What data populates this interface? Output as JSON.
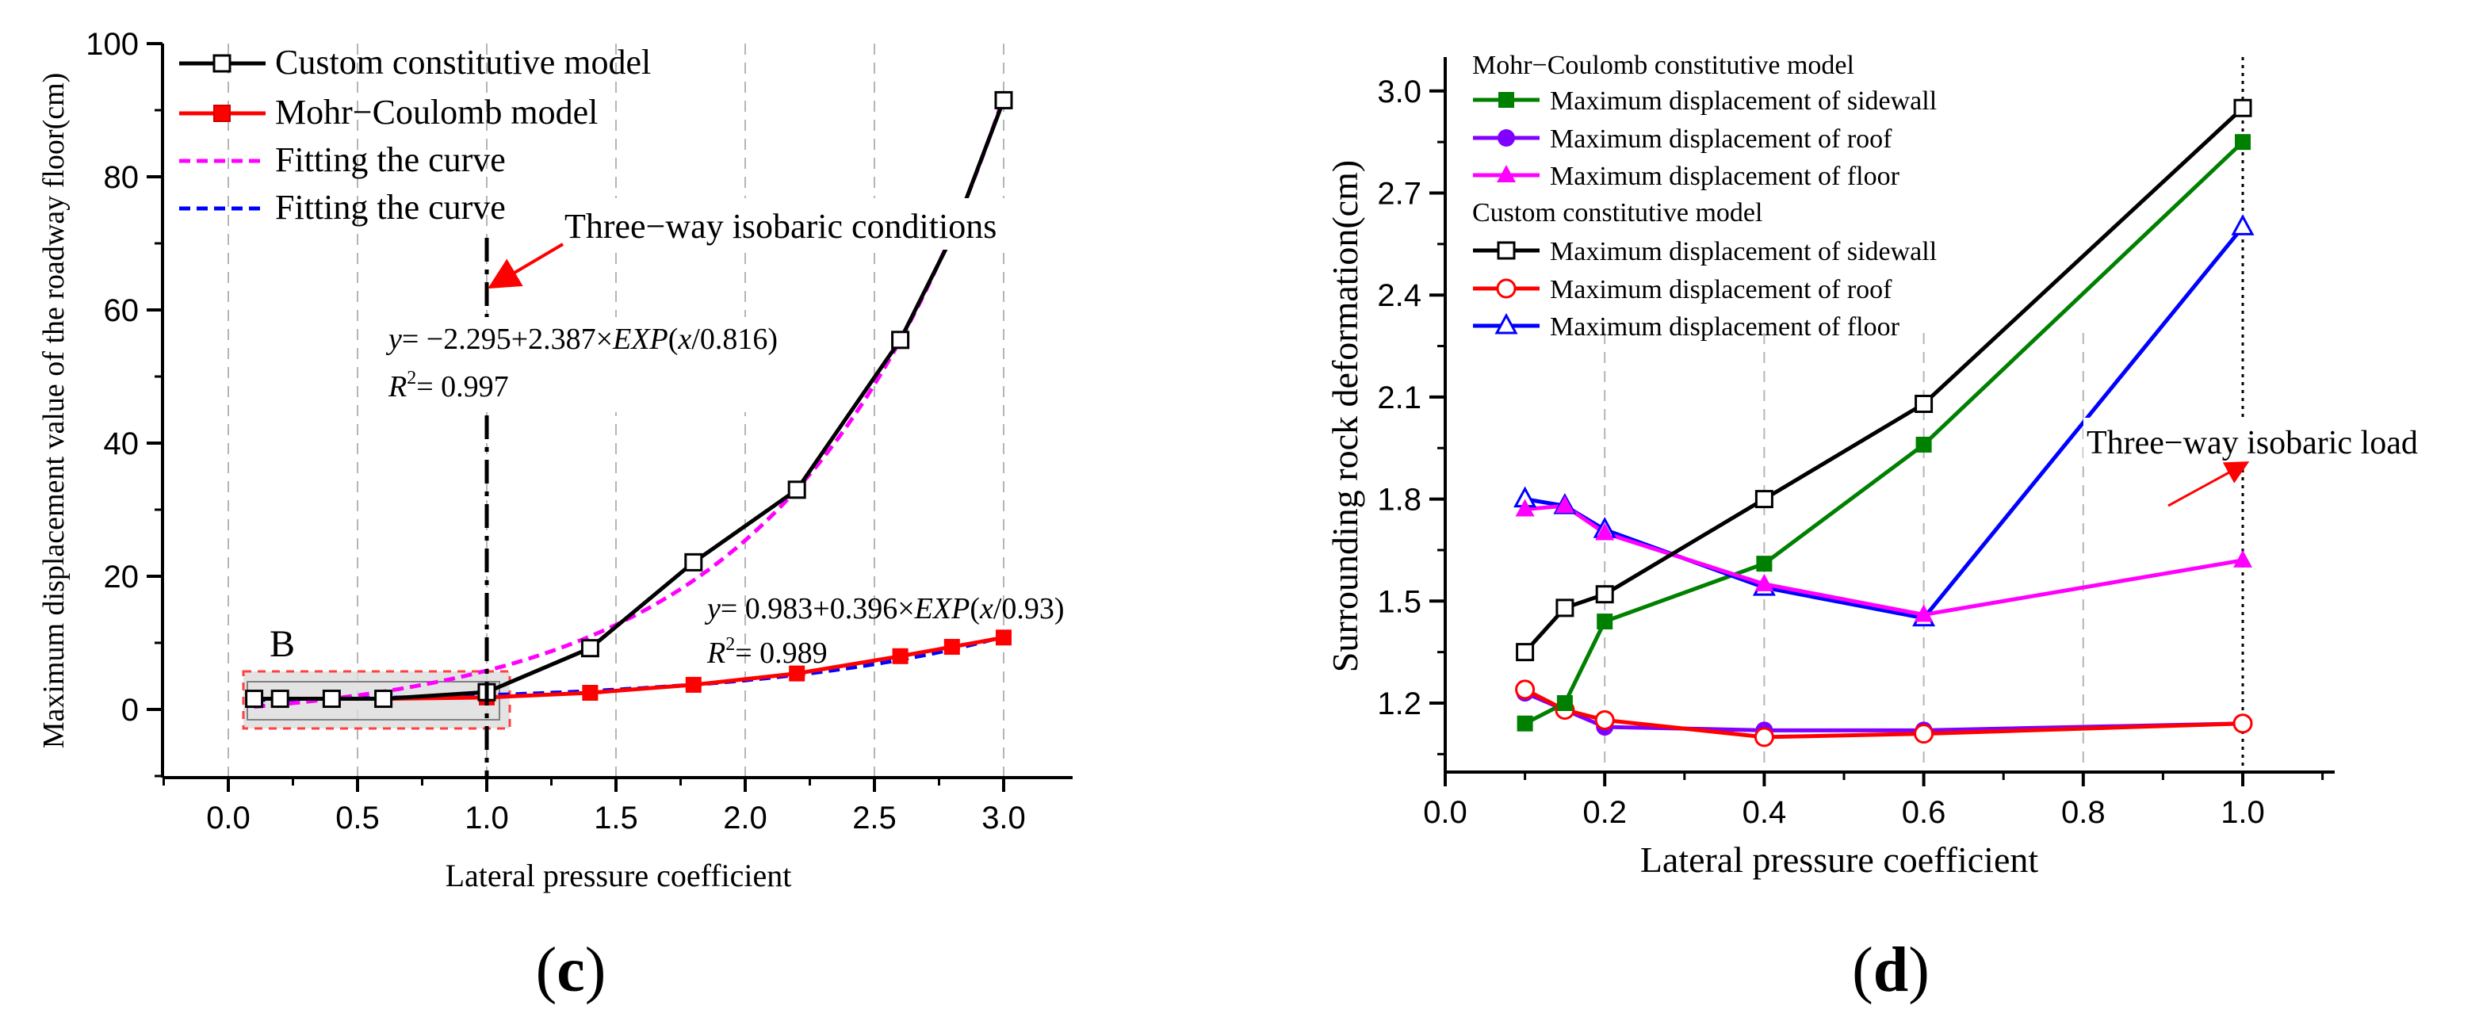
{
  "chart_data": [
    {
      "panel_label": "(c)",
      "type": "line",
      "xlabel": "Lateral pressure coefficient",
      "ylabel": "Maximum displacement value of the roadway floor(cm)",
      "xlim": [
        -0.25,
        3.25
      ],
      "ylim": [
        -10,
        100
      ],
      "xticks": [
        0.0,
        0.5,
        1.0,
        1.5,
        2.0,
        2.5,
        3.0
      ],
      "xtick_labels": [
        "0.0",
        "0.5",
        "1.0",
        "1.5",
        "2.0",
        "2.5",
        "3.0"
      ],
      "yticks": [
        0,
        20,
        40,
        60,
        80,
        100
      ],
      "ytick_labels": [
        "0",
        "20",
        "40",
        "60",
        "80",
        "100"
      ],
      "grid_x": [
        0.0,
        0.5,
        1.0,
        1.5,
        2.0,
        2.5,
        3.0
      ],
      "series": [
        {
          "name": "Custom constitutive model",
          "color": "#000000",
          "marker": "square-open",
          "style": "solid",
          "x": [
            0.1,
            0.2,
            0.4,
            0.6,
            1.0,
            1.4,
            1.8,
            2.2,
            2.6,
            2.8,
            3.0
          ],
          "y": [
            1.6,
            1.6,
            1.6,
            1.6,
            2.6,
            9.2,
            22.1,
            33.0,
            55.5,
            71.0,
            91.5
          ]
        },
        {
          "name": "Mohr−Coulomb model",
          "color": "#ff0000",
          "marker": "square-filled",
          "style": "solid",
          "x": [
            0.1,
            0.2,
            0.4,
            0.6,
            1.0,
            1.4,
            1.8,
            2.2,
            2.6,
            2.8,
            3.0
          ],
          "y": [
            1.6,
            1.6,
            1.6,
            1.6,
            1.8,
            2.5,
            3.7,
            5.4,
            8.0,
            9.4,
            10.8
          ]
        },
        {
          "name": "Fitting the curve",
          "color": "#ff00ff",
          "marker": "none",
          "style": "dashed",
          "fit": "exp",
          "params": {
            "a": -2.295,
            "b": 2.387,
            "t": 0.816
          }
        },
        {
          "name": "Fitting the curve",
          "color": "#0000ff",
          "marker": "none",
          "style": "dashed",
          "fit": "exp",
          "params": {
            "a": 0.983,
            "b": 0.396,
            "t": 0.93
          }
        }
      ],
      "vline": {
        "x": 1.0,
        "color": "#000000",
        "style": "dash-dot"
      },
      "annotations": {
        "isobaric": "Three−way isobaric conditions",
        "eq1_y": "y",
        "eq1_rest": "= −2.295+2.387×",
        "eq1_exp": "EXP",
        "eq1_x": "x",
        "eq1_tail": "/0.816)",
        "r2_1_label": "R",
        "r2_1_sup": "2",
        "r2_1_val": "= 0.997",
        "eq2_y": "y",
        "eq2_rest": "= 0.983+0.396×",
        "eq2_exp": "EXP",
        "eq2_x": "x",
        "eq2_tail": "/0.93)",
        "r2_2_label": "R",
        "r2_2_sup": "2",
        "r2_2_val": "= 0.989",
        "box_label": "B",
        "paren_open": "(",
        "paren_close": ")"
      },
      "legend_position": "top-left"
    },
    {
      "panel_label": "(d)",
      "type": "line",
      "xlabel": "Lateral pressure coefficient",
      "ylabel": "Surrounding rock deformation(cm)",
      "xlim": [
        0.0,
        1.1
      ],
      "ylim": [
        1.02,
        3.1
      ],
      "xticks": [
        0.0,
        0.2,
        0.4,
        0.6,
        0.8,
        1.0
      ],
      "xtick_labels": [
        "0.0",
        "0.2",
        "0.4",
        "0.6",
        "0.8",
        "1.0"
      ],
      "yticks": [
        1.2,
        1.5,
        1.8,
        2.1,
        2.4,
        2.7,
        3.0
      ],
      "ytick_labels": [
        "1.2",
        "1.5",
        "1.8",
        "2.1",
        "2.4",
        "2.7",
        "3.0"
      ],
      "grid_x": [
        0.2,
        0.4,
        0.6,
        0.8
      ],
      "legend_headers": [
        "Mohr−Coulomb constitutive model",
        "Custom constitutive model"
      ],
      "series": [
        {
          "name": "Maximum displacement of sidewall",
          "group": "Mohr−Coulomb constitutive model",
          "color": "#008000",
          "marker": "square-filled",
          "x": [
            0.1,
            0.15,
            0.2,
            0.4,
            0.6,
            1.0
          ],
          "y": [
            1.14,
            1.2,
            1.44,
            1.61,
            1.96,
            2.85
          ]
        },
        {
          "name": "Maximum displacement of roof",
          "group": "Mohr−Coulomb constitutive model",
          "color": "#8000ff",
          "marker": "circle-filled",
          "x": [
            0.1,
            0.15,
            0.2,
            0.4,
            0.6,
            1.0
          ],
          "y": [
            1.23,
            1.18,
            1.13,
            1.12,
            1.12,
            1.14
          ]
        },
        {
          "name": "Maximum displacement of floor",
          "group": "Mohr−Coulomb constitutive model",
          "color": "#ff00ff",
          "marker": "triangle-filled",
          "x": [
            0.1,
            0.15,
            0.2,
            0.4,
            0.6,
            1.0
          ],
          "y": [
            1.77,
            1.78,
            1.7,
            1.55,
            1.46,
            1.62
          ]
        },
        {
          "name": "Maximum displacement of sidewall",
          "group": "Custom constitutive model",
          "color": "#000000",
          "marker": "square-open",
          "x": [
            0.1,
            0.15,
            0.2,
            0.4,
            0.6,
            1.0
          ],
          "y": [
            1.35,
            1.48,
            1.52,
            1.8,
            2.08,
            2.95
          ]
        },
        {
          "name": "Maximum displacement of roof",
          "group": "Custom constitutive model",
          "color": "#ff0000",
          "marker": "circle-open",
          "x": [
            0.1,
            0.15,
            0.2,
            0.4,
            0.6,
            1.0
          ],
          "y": [
            1.24,
            1.18,
            1.15,
            1.1,
            1.11,
            1.14
          ]
        },
        {
          "name": "Maximum displacement of floor",
          "group": "Custom constitutive model",
          "color": "#0000ff",
          "marker": "triangle-open",
          "x": [
            0.1,
            0.15,
            0.2,
            0.4,
            0.6,
            1.0
          ],
          "y": [
            1.8,
            1.78,
            1.71,
            1.54,
            1.45,
            2.6
          ]
        }
      ],
      "vline": {
        "x": 1.0,
        "color": "#000000",
        "style": "dotted"
      },
      "annotations": {
        "isobaric": "Three−way isobaric load",
        "paren_open": "(",
        "paren_close": ")"
      },
      "legend_position": "top-left"
    }
  ]
}
